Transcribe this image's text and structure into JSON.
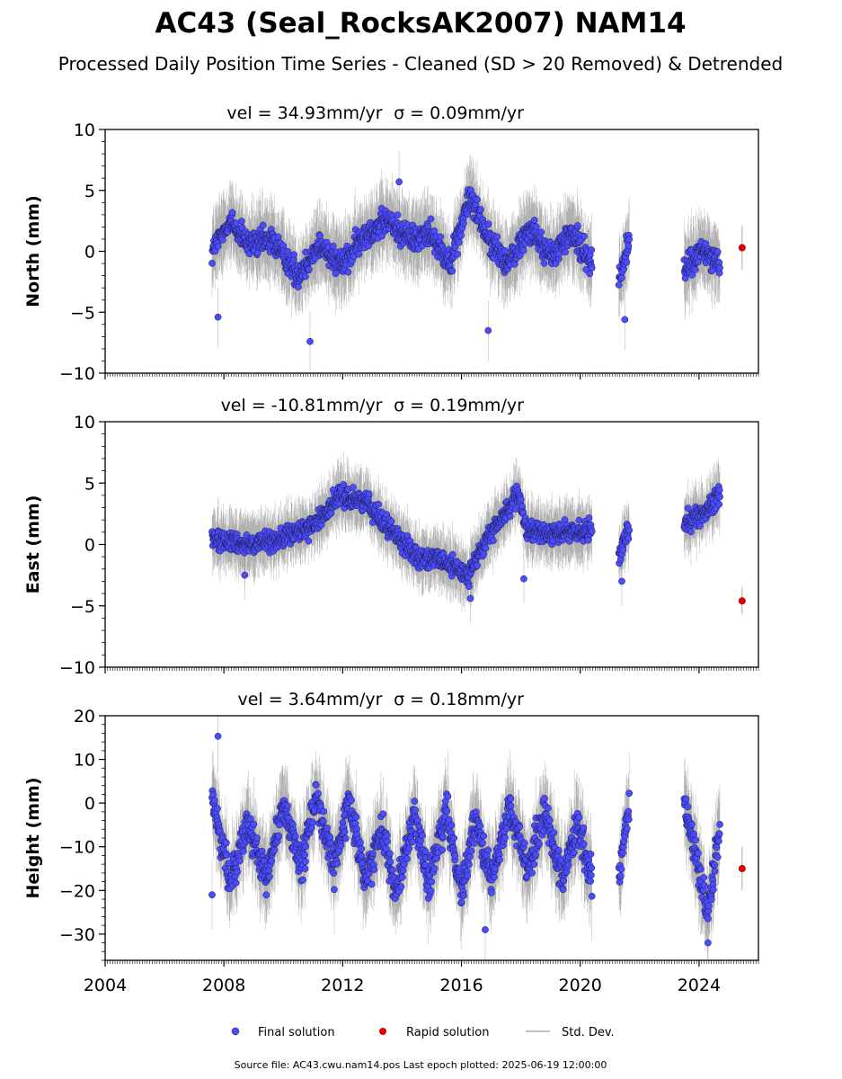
{
  "title": "AC43 (Seal_RocksAK2007) NAM14",
  "subtitle": "Processed Daily Position Time Series - Cleaned (SD > 20 Removed) & Detrended",
  "legend": {
    "final": "Final solution",
    "rapid": "Rapid solution",
    "std": "Std. Dev.",
    "placement": "bottom-center"
  },
  "footer": "Source file: AC43.cwu.nam14.pos  Last epoch plotted: 2025-06-19 12:00:00",
  "colors": {
    "final": "#4b4bff",
    "rapid": "#e00000",
    "errorbar": "#555555"
  },
  "chart_data": [
    {
      "type": "scatter",
      "title_vel": "vel = 34.93mm/yr",
      "title_sigma": "σ = 0.09mm/yr",
      "ylabel": "North (mm)",
      "ylim": [
        -10,
        10
      ],
      "yticks": [
        -10,
        -5,
        0,
        5,
        10
      ],
      "ytick_labels": [
        "−10",
        "−5",
        "0",
        "5",
        "10"
      ],
      "xlim": [
        2004,
        2026
      ],
      "xticks": [
        2004,
        2008,
        2012,
        2016,
        2020,
        2024
      ],
      "xtick_labels": [],
      "segments": [
        [
          2007.6,
          2020.4
        ],
        [
          2021.3,
          2021.65
        ],
        [
          2023.5,
          2024.7
        ]
      ],
      "final_trend": [
        [
          2007.6,
          0
        ],
        [
          2008.2,
          2.5
        ],
        [
          2008.8,
          0.5
        ],
        [
          2009.6,
          1.0
        ],
        [
          2010.5,
          -2.0
        ],
        [
          2011.2,
          0.5
        ],
        [
          2012.0,
          -1.0
        ],
        [
          2012.8,
          1.5
        ],
        [
          2013.5,
          2.5
        ],
        [
          2014.3,
          1.0
        ],
        [
          2015.0,
          1.5
        ],
        [
          2015.6,
          -1.0
        ],
        [
          2016.3,
          4.5
        ],
        [
          2017.0,
          0.5
        ],
        [
          2017.6,
          -1.0
        ],
        [
          2018.3,
          2.0
        ],
        [
          2019.0,
          -0.5
        ],
        [
          2019.7,
          1.5
        ],
        [
          2020.4,
          -1.0
        ],
        [
          2021.3,
          -2.5
        ],
        [
          2021.65,
          1.0
        ],
        [
          2023.5,
          -1.5
        ],
        [
          2024.1,
          0
        ],
        [
          2024.7,
          -1.0
        ]
      ],
      "spread": 1.6,
      "errorbar": 2.5,
      "outliers": [
        [
          2007.8,
          -5.4
        ],
        [
          2010.9,
          -7.4
        ],
        [
          2013.9,
          5.7
        ],
        [
          2016.9,
          -6.5
        ],
        [
          2021.5,
          -5.6
        ]
      ],
      "rapid": {
        "x": 2025.45,
        "y": 0.3,
        "err": 1.8
      }
    },
    {
      "type": "scatter",
      "title_vel": "vel = -10.81mm/yr",
      "title_sigma": "σ = 0.19mm/yr",
      "ylabel": "East (mm)",
      "ylim": [
        -10,
        10
      ],
      "yticks": [
        -10,
        -5,
        0,
        5,
        10
      ],
      "ytick_labels": [
        "−10",
        "−5",
        "0",
        "5",
        "10"
      ],
      "xlim": [
        2004,
        2026
      ],
      "xticks": [
        2004,
        2008,
        2012,
        2016,
        2020,
        2024
      ],
      "xtick_labels": [],
      "segments": [
        [
          2007.6,
          2020.4
        ],
        [
          2021.3,
          2021.65
        ],
        [
          2023.5,
          2024.7
        ]
      ],
      "final_trend": [
        [
          2007.6,
          0.5
        ],
        [
          2009.0,
          0
        ],
        [
          2010.0,
          0.5
        ],
        [
          2011.0,
          1.5
        ],
        [
          2011.9,
          4.0
        ],
        [
          2012.8,
          3.5
        ],
        [
          2013.5,
          1.5
        ],
        [
          2014.5,
          -1.0
        ],
        [
          2015.5,
          -1.5
        ],
        [
          2016.2,
          -2.5
        ],
        [
          2017.0,
          1.0
        ],
        [
          2017.9,
          4.0
        ],
        [
          2018.2,
          1.0
        ],
        [
          2019.0,
          1.0
        ],
        [
          2020.4,
          1.0
        ],
        [
          2021.3,
          -1.0
        ],
        [
          2021.65,
          1.5
        ],
        [
          2023.5,
          2.0
        ],
        [
          2024.2,
          2.5
        ],
        [
          2024.7,
          4.0
        ]
      ],
      "spread": 1.2,
      "errorbar": 2.0,
      "outliers": [
        [
          2008.7,
          -2.5
        ],
        [
          2016.3,
          -4.4
        ],
        [
          2018.1,
          -2.8
        ],
        [
          2021.4,
          -3.0
        ]
      ],
      "rapid": {
        "x": 2025.45,
        "y": -4.6,
        "err": 1.1
      }
    },
    {
      "type": "scatter",
      "title_vel": "vel = 3.64mm/yr",
      "title_sigma": "σ = 0.18mm/yr",
      "ylabel": "Height (mm)",
      "ylim": [
        -36,
        20
      ],
      "yticks": [
        -30,
        -20,
        -10,
        0,
        10,
        20
      ],
      "ytick_labels": [
        "−30",
        "−20",
        "−10",
        "0",
        "10",
        "20"
      ],
      "xlim": [
        2004,
        2026
      ],
      "xticks": [
        2004,
        2008,
        2012,
        2016,
        2020,
        2024
      ],
      "xtick_labels": [
        "2004",
        "2008",
        "2012",
        "2016",
        "2020",
        "2024"
      ],
      "segments": [
        [
          2007.6,
          2020.4
        ],
        [
          2021.3,
          2021.65
        ],
        [
          2023.5,
          2024.7
        ]
      ],
      "final_trend": [
        [
          2007.6,
          2
        ],
        [
          2008.2,
          -18
        ],
        [
          2008.8,
          -5
        ],
        [
          2009.4,
          -18
        ],
        [
          2010.0,
          0
        ],
        [
          2010.6,
          -15
        ],
        [
          2011.1,
          2
        ],
        [
          2011.7,
          -15
        ],
        [
          2012.2,
          0
        ],
        [
          2012.8,
          -18
        ],
        [
          2013.3,
          -5
        ],
        [
          2013.8,
          -20
        ],
        [
          2014.4,
          -3
        ],
        [
          2014.9,
          -18
        ],
        [
          2015.5,
          -2
        ],
        [
          2016.0,
          -20
        ],
        [
          2016.5,
          -3
        ],
        [
          2017.0,
          -18
        ],
        [
          2017.6,
          0
        ],
        [
          2018.2,
          -15
        ],
        [
          2018.8,
          -2
        ],
        [
          2019.4,
          -18
        ],
        [
          2019.9,
          -5
        ],
        [
          2020.4,
          -18
        ],
        [
          2021.3,
          -18
        ],
        [
          2021.65,
          0
        ],
        [
          2023.5,
          0
        ],
        [
          2024.3,
          -25
        ],
        [
          2024.7,
          -5
        ]
      ],
      "spread": 6,
      "errorbar": 8,
      "outliers": [
        [
          2007.8,
          15.3
        ],
        [
          2007.6,
          -21
        ],
        [
          2016.8,
          -29
        ],
        [
          2024.3,
          -32
        ]
      ],
      "rapid": {
        "x": 2025.45,
        "y": -15,
        "err": 5
      }
    }
  ]
}
